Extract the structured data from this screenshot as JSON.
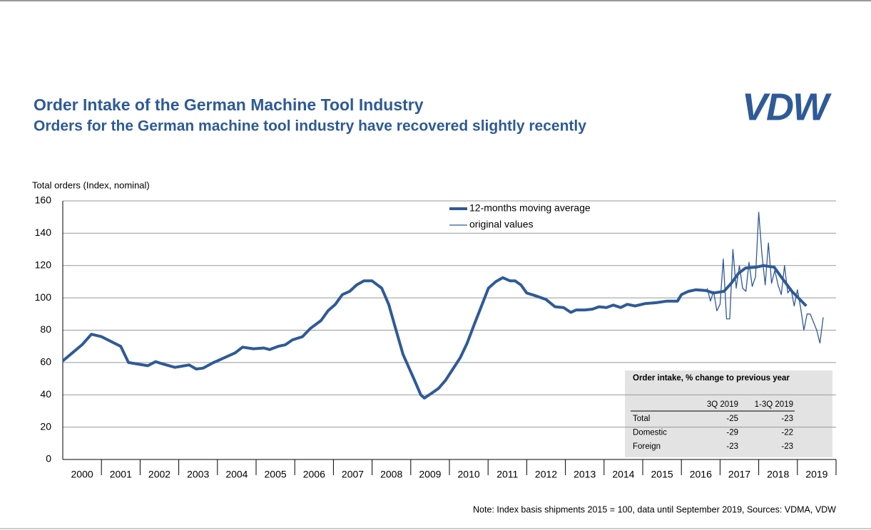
{
  "logo": "VDW",
  "note": "Note: Index basis shipments  2015 = 100, data until September 2019, Sources: VDMA, VDW",
  "table": {
    "title": "Order intake, % change to previous year",
    "columns": [
      "3Q 2019",
      "1-3Q 2019"
    ],
    "rows": [
      [
        "Total",
        "-25",
        "-23"
      ],
      [
        "Domestic",
        "-29",
        "-22"
      ],
      [
        "Foreign",
        "-23",
        "-23"
      ]
    ]
  },
  "chart_data": {
    "type": "line",
    "title": "Order Intake of the German Machine Tool Industry",
    "subtitle": "Orders for the German machine tool industry have recovered slightly recently",
    "y_label": "Total orders (Index, nominal)",
    "xlim": [
      2000,
      2020
    ],
    "ylim": [
      0,
      160
    ],
    "yticks": [
      0,
      20,
      40,
      60,
      80,
      100,
      120,
      140,
      160
    ],
    "xticks": [
      {
        "value": 2000.5,
        "label": "2000"
      },
      {
        "value": 2001.5,
        "label": "2001"
      },
      {
        "value": 2002.5,
        "label": "2002"
      },
      {
        "value": 2003.5,
        "label": "2003"
      },
      {
        "value": 2004.5,
        "label": "2004"
      },
      {
        "value": 2005.5,
        "label": "2005"
      },
      {
        "value": 2006.5,
        "label": "2006"
      },
      {
        "value": 2007.5,
        "label": "2007"
      },
      {
        "value": 2008.5,
        "label": "2008"
      },
      {
        "value": 2009.5,
        "label": "2009"
      },
      {
        "value": 2010.5,
        "label": "2010"
      },
      {
        "value": 2011.5,
        "label": "2011"
      },
      {
        "value": 2012.5,
        "label": "2012"
      },
      {
        "value": 2013.5,
        "label": "2013"
      },
      {
        "value": 2014.5,
        "label": "2014"
      },
      {
        "value": 2015.5,
        "label": "2015"
      },
      {
        "value": 2016.5,
        "label": "2016"
      },
      {
        "value": 2017.5,
        "label": "2017"
      },
      {
        "value": 2018.5,
        "label": "2018"
      },
      {
        "value": 2019.5,
        "label": "2019"
      }
    ],
    "grid": true,
    "legend": "top",
    "series": [
      {
        "name": "12-months moving average",
        "color": "#2e5a97",
        "width": 4,
        "x": [
          2000,
          2000.25,
          2000.5,
          2000.74,
          2001,
          2001.25,
          2001.5,
          2001.7,
          2002.2,
          2002.4,
          2002.6,
          2002.9,
          2003.27,
          2003.45,
          2003.63,
          2003.9,
          2004,
          2004.46,
          2004.65,
          2004.93,
          2005.2,
          2005.35,
          2005.57,
          2005.76,
          2005.94,
          2006.2,
          2006.4,
          2006.68,
          2006.86,
          2007.05,
          2007.23,
          2007.42,
          2007.6,
          2007.79,
          2008,
          2008.25,
          2008.43,
          2008.62,
          2008.8,
          2009.08,
          2009.26,
          2009.35,
          2009.54,
          2009.72,
          2009.9,
          2010.09,
          2010.28,
          2010.46,
          2010.65,
          2010.83,
          2011.01,
          2011.2,
          2011.38,
          2011.57,
          2011.7,
          2011.85,
          2012,
          2012.2,
          2012.5,
          2012.73,
          2012.95,
          2013.14,
          2013.28,
          2013.5,
          2013.7,
          2013.87,
          2014.06,
          2014.24,
          2014.43,
          2014.6,
          2014.8,
          2015.07,
          2015.35,
          2015.63,
          2015.9,
          2016,
          2016.18,
          2016.37,
          2016.64,
          2016.83,
          2017.1,
          2017.29,
          2017.47,
          2017.66,
          2017.93,
          2018.12,
          2018.4,
          2018.58,
          2018.86,
          2019.23
        ],
        "values": [
          61,
          66,
          71,
          77.5,
          76,
          73,
          70,
          60,
          58,
          60.5,
          59,
          57,
          58.5,
          56,
          56.5,
          60,
          61,
          66,
          69.5,
          68.5,
          69,
          68,
          70,
          71,
          74,
          76,
          81,
          86,
          92,
          96,
          102,
          104,
          108,
          110.5,
          110.5,
          106,
          96,
          80,
          65,
          50,
          40,
          38,
          41,
          44,
          49,
          56,
          63,
          72,
          84,
          95,
          106,
          110,
          112.5,
          110.5,
          110.5,
          108,
          103,
          101.5,
          99,
          94.5,
          94,
          91,
          92.5,
          92.5,
          93,
          94.5,
          94,
          95.5,
          94,
          96,
          95,
          96.5,
          97,
          98,
          98,
          102,
          104,
          105,
          104.5,
          103,
          104,
          109,
          115,
          118.5,
          119,
          120,
          119,
          113,
          104,
          95
        ]
      },
      {
        "name": "original values",
        "color": "#2e5a97",
        "width": 1.3,
        "x": [
          2016.667,
          2016.75,
          2016.833,
          2016.917,
          2017,
          2017.083,
          2017.167,
          2017.25,
          2017.333,
          2017.417,
          2017.5,
          2017.583,
          2017.667,
          2017.75,
          2017.833,
          2017.917,
          2018,
          2018.083,
          2018.167,
          2018.25,
          2018.333,
          2018.417,
          2018.5,
          2018.583,
          2018.667,
          2018.75,
          2018.833,
          2018.917,
          2019,
          2019.083,
          2019.167,
          2019.25,
          2019.333,
          2019.417,
          2019.5,
          2019.583,
          2019.667
        ],
        "values": [
          106,
          98,
          104,
          92,
          96,
          124,
          87,
          87,
          130,
          106,
          120,
          106,
          104,
          122,
          107,
          113,
          153,
          127,
          108,
          134,
          109,
          117,
          108,
          102,
          120,
          103,
          106,
          95,
          105,
          94,
          80,
          90,
          90,
          85,
          80,
          72,
          88
        ]
      }
    ]
  }
}
